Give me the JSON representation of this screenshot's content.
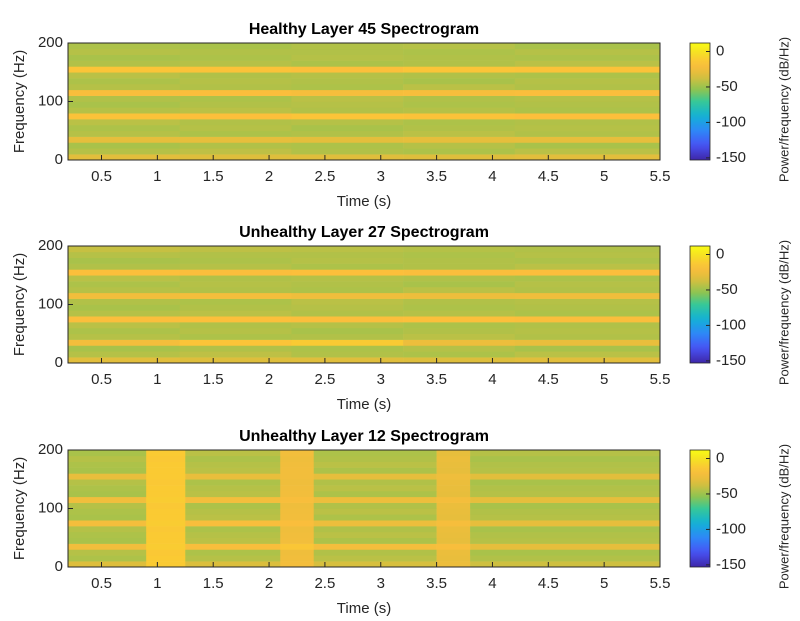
{
  "chart_data": [
    {
      "type": "heatmap",
      "title": "Healthy Layer 45 Spectrogram",
      "xlabel": "Time (s)",
      "ylabel": "Frequency (Hz)",
      "colorbar_label": "Power/frequency (dB/Hz)",
      "colormap": "parula",
      "xlim": [
        0.2,
        5.5
      ],
      "xticks": [
        0.5,
        1,
        1.5,
        2,
        2.5,
        3,
        3.5,
        4,
        4.5,
        5,
        5.5
      ],
      "ylim": [
        0,
        200
      ],
      "yticks": [
        0,
        100,
        200
      ],
      "clim": [
        -153,
        12
      ],
      "cticks": [
        0,
        -50,
        -100,
        -150
      ],
      "x_edges": [
        0.2,
        1.2,
        2.2,
        3.2,
        4.2,
        5.5
      ],
      "y_edges": [
        0,
        10,
        20,
        30,
        40,
        50,
        60,
        70,
        80,
        90,
        100,
        110,
        120,
        130,
        140,
        150,
        160,
        170,
        180,
        190,
        200
      ],
      "values": [
        [
          -32,
          -34,
          -33,
          -34,
          -32
        ],
        [
          -44,
          -42,
          -45,
          -46,
          -43
        ],
        [
          -47,
          -45,
          -46,
          -44,
          -47
        ],
        [
          -30,
          -29,
          -31,
          -30,
          -29
        ],
        [
          -44,
          -46,
          -45,
          -43,
          -45
        ],
        [
          -46,
          -44,
          -47,
          -45,
          -44
        ],
        [
          -43,
          -45,
          -44,
          -46,
          -45
        ],
        [
          -16,
          -17,
          -15,
          -16,
          -17
        ],
        [
          -44,
          -43,
          -45,
          -44,
          -46
        ],
        [
          -47,
          -45,
          -44,
          -46,
          -45
        ],
        [
          -45,
          -46,
          -43,
          -45,
          -44
        ],
        [
          -20,
          -19,
          -21,
          -20,
          -19
        ],
        [
          -44,
          -45,
          -46,
          -43,
          -45
        ],
        [
          -46,
          -44,
          -45,
          -47,
          -44
        ],
        [
          -43,
          -45,
          -44,
          -45,
          -46
        ],
        [
          -15,
          -16,
          -17,
          -15,
          -16
        ],
        [
          -45,
          -44,
          -46,
          -45,
          -43
        ],
        [
          -47,
          -46,
          -44,
          -45,
          -46
        ],
        [
          -44,
          -45,
          -45,
          -46,
          -44
        ],
        [
          -46,
          -47,
          -45,
          -44,
          -47
        ]
      ]
    },
    {
      "type": "heatmap",
      "title": "Unhealthy Layer 27 Spectrogram",
      "xlabel": "Time (s)",
      "ylabel": "Frequency (Hz)",
      "colorbar_label": "Power/frequency (dB/Hz)",
      "colormap": "parula",
      "xlim": [
        0.2,
        5.5
      ],
      "xticks": [
        0.5,
        1,
        1.5,
        2,
        2.5,
        3,
        3.5,
        4,
        4.5,
        5,
        5.5
      ],
      "ylim": [
        0,
        200
      ],
      "yticks": [
        0,
        100,
        200
      ],
      "clim": [
        -153,
        12
      ],
      "cticks": [
        0,
        -50,
        -100,
        -150
      ],
      "x_edges": [
        0.2,
        1.2,
        2.2,
        3.2,
        4.2,
        5.5
      ],
      "y_edges": [
        0,
        10,
        20,
        30,
        40,
        50,
        60,
        70,
        80,
        90,
        100,
        110,
        120,
        130,
        140,
        150,
        160,
        170,
        180,
        190,
        200
      ],
      "values": [
        [
          -32,
          -34,
          -33,
          -34,
          -32
        ],
        [
          -44,
          -42,
          -45,
          -46,
          -43
        ],
        [
          -47,
          -45,
          -46,
          -44,
          -47
        ],
        [
          -22,
          -15,
          -12,
          -26,
          -28
        ],
        [
          -44,
          -46,
          -45,
          -43,
          -45
        ],
        [
          -46,
          -44,
          -47,
          -45,
          -44
        ],
        [
          -43,
          -45,
          -44,
          -46,
          -45
        ],
        [
          -18,
          -17,
          -18,
          -17,
          -19
        ],
        [
          -44,
          -43,
          -45,
          -44,
          -46
        ],
        [
          -47,
          -45,
          -44,
          -46,
          -45
        ],
        [
          -45,
          -46,
          -43,
          -45,
          -44
        ],
        [
          -24,
          -22,
          -25,
          -26,
          -25
        ],
        [
          -44,
          -45,
          -46,
          -43,
          -45
        ],
        [
          -46,
          -44,
          -45,
          -47,
          -44
        ],
        [
          -43,
          -45,
          -44,
          -45,
          -46
        ],
        [
          -17,
          -18,
          -17,
          -19,
          -18
        ],
        [
          -45,
          -44,
          -46,
          -45,
          -43
        ],
        [
          -47,
          -46,
          -44,
          -45,
          -46
        ],
        [
          -44,
          -45,
          -45,
          -46,
          -44
        ],
        [
          -40,
          -42,
          -43,
          -44,
          -45
        ]
      ]
    },
    {
      "type": "heatmap",
      "title": "Unhealthy Layer 12 Spectrogram",
      "xlabel": "Time (s)",
      "ylabel": "Frequency (Hz)",
      "colorbar_label": "Power/frequency (dB/Hz)",
      "colormap": "parula",
      "xlim": [
        0.2,
        5.5
      ],
      "xticks": [
        0.5,
        1,
        1.5,
        2,
        2.5,
        3,
        3.5,
        4,
        4.5,
        5,
        5.5
      ],
      "ylim": [
        0,
        200
      ],
      "yticks": [
        0,
        100,
        200
      ],
      "clim": [
        -153,
        12
      ],
      "cticks": [
        0,
        -50,
        -100,
        -150
      ],
      "x_edges": [
        0.2,
        0.9,
        1.25,
        2.1,
        2.4,
        3.5,
        3.8,
        5.5
      ],
      "y_edges": [
        0,
        10,
        20,
        30,
        40,
        50,
        60,
        70,
        80,
        90,
        100,
        110,
        120,
        130,
        140,
        150,
        160,
        170,
        180,
        190,
        200
      ],
      "values": [
        [
          -34,
          -12,
          -35,
          -22,
          -36,
          -26,
          -38
        ],
        [
          -46,
          -12,
          -44,
          -24,
          -43,
          -28,
          -45
        ],
        [
          -44,
          -13,
          -46,
          -25,
          -45,
          -27,
          -47
        ],
        [
          -24,
          -11,
          -20,
          -14,
          -22,
          -20,
          -30
        ],
        [
          -47,
          -12,
          -43,
          -23,
          -46,
          -29,
          -44
        ],
        [
          -46,
          -12,
          -44,
          -24,
          -43,
          -28,
          -45
        ],
        [
          -44,
          -13,
          -46,
          -25,
          -45,
          -27,
          -47
        ],
        [
          -22,
          -11,
          -20,
          -19,
          -26,
          -21,
          -30
        ],
        [
          -47,
          -12,
          -43,
          -23,
          -46,
          -29,
          -44
        ],
        [
          -46,
          -12,
          -44,
          -24,
          -43,
          -28,
          -45
        ],
        [
          -44,
          -13,
          -46,
          -25,
          -45,
          -27,
          -47
        ],
        [
          -24,
          -11,
          -22,
          -20,
          -26,
          -22,
          -30
        ],
        [
          -47,
          -12,
          -43,
          -23,
          -46,
          -29,
          -44
        ],
        [
          -46,
          -12,
          -44,
          -24,
          -43,
          -28,
          -45
        ],
        [
          -44,
          -13,
          -46,
          -25,
          -45,
          -27,
          -47
        ],
        [
          -28,
          -12,
          -28,
          -23,
          -30,
          -25,
          -32
        ],
        [
          -47,
          -12,
          -43,
          -23,
          -46,
          -29,
          -44
        ],
        [
          -46,
          -12,
          -44,
          -24,
          -43,
          -28,
          -45
        ],
        [
          -44,
          -13,
          -46,
          -25,
          -45,
          -27,
          -47
        ],
        [
          -47,
          -12,
          -43,
          -23,
          -46,
          -29,
          -44
        ]
      ]
    }
  ]
}
